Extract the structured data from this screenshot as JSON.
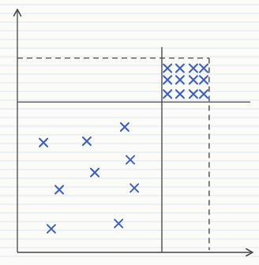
{
  "chart_data": {
    "type": "scatter",
    "xlim": [
      0,
      100
    ],
    "ylim": [
      0,
      100
    ],
    "tick_labels": false,
    "series": [
      {
        "type": "scatter",
        "marker": "x",
        "color": "#3a5cc8",
        "x": [
          11.1,
          29.5,
          45.6,
          32.9,
          48.0,
          17.8,
          49.7,
          14.4,
          43.0,
          63.8,
          69.1,
          74.8,
          79.2,
          63.8,
          69.1,
          74.8,
          79.2,
          63.8,
          69.1,
          74.8,
          79.2
        ],
        "values": [
          45.2,
          45.8,
          51.6,
          32.9,
          38.1,
          25.8,
          26.5,
          9.7,
          11.9,
          75.8,
          75.8,
          75.8,
          75.8,
          71.0,
          71.0,
          71.0,
          71.0,
          65.2,
          65.2,
          65.2,
          65.2
        ]
      },
      {
        "type": "line",
        "line_style": "solid",
        "color": "#4a4a4a",
        "x": [
          61.4,
          61.4
        ],
        "values": [
          0,
          84.5
        ]
      },
      {
        "type": "line",
        "line_style": "solid",
        "color": "#4a4a4a",
        "x": [
          0,
          99
        ],
        "values": [
          61.9,
          61.9
        ]
      },
      {
        "type": "line",
        "line_style": "dashed",
        "color": "#4a4a4a",
        "x": [
          0,
          81.5
        ],
        "values": [
          80,
          80
        ]
      },
      {
        "type": "line",
        "line_style": "dashed",
        "color": "#4a4a4a",
        "x": [
          81.5,
          81.5
        ],
        "values": [
          80,
          1
        ]
      }
    ]
  }
}
